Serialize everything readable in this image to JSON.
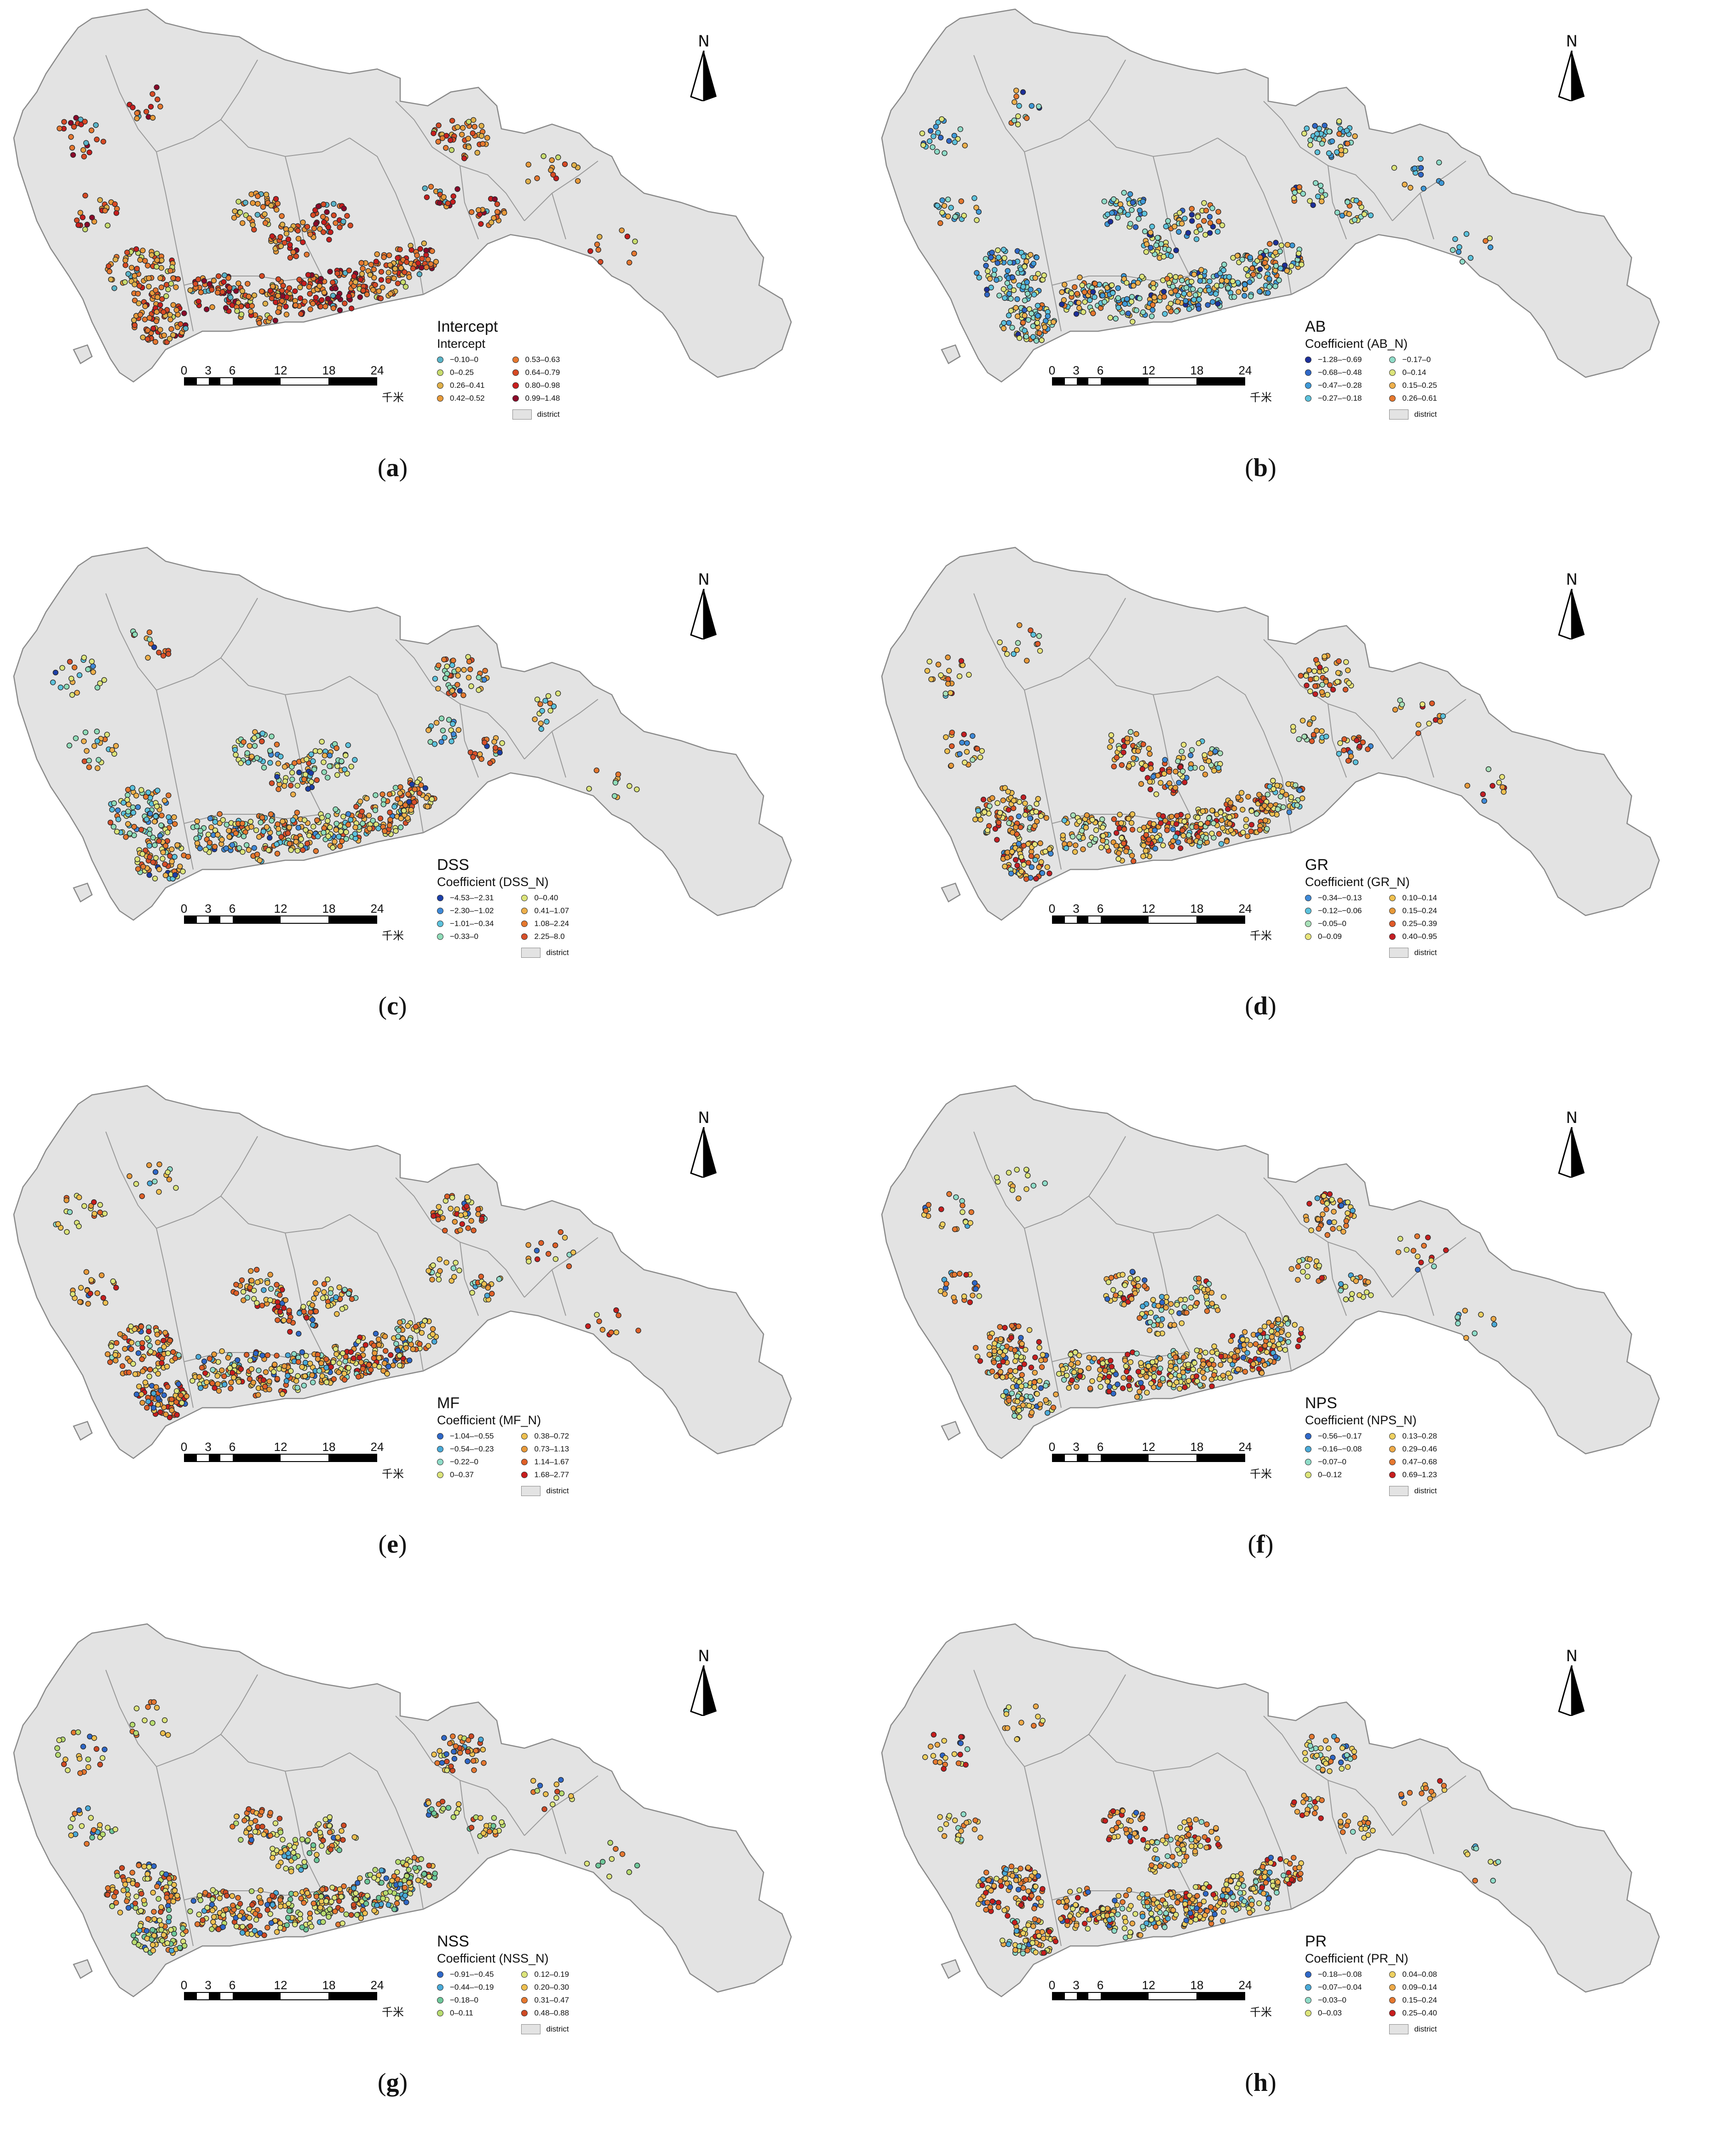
{
  "common": {
    "north_label": "N",
    "scale_ticks": [
      "0",
      "3",
      "6",
      "12",
      "18",
      "24"
    ],
    "scale_unit": "千米",
    "district_label": "district",
    "region_fill": "#e3e3e3",
    "region_stroke": "#8a8a8a"
  },
  "panels": [
    {
      "id": "a",
      "caption_letter": "a",
      "legend_title": "Intercept",
      "legend_sub": "Intercept",
      "classes_left": [
        {
          "label": "−0.10–0",
          "color": "#5ab4c8"
        },
        {
          "label": "0–0.25",
          "color": "#c8dc6e"
        },
        {
          "label": "0.26–0.41",
          "color": "#e0b04a"
        },
        {
          "label": "0.42–0.52",
          "color": "#e89a3a"
        }
      ],
      "classes_right": [
        {
          "label": "0.53–0.63",
          "color": "#e67830"
        },
        {
          "label": "0.64–0.79",
          "color": "#d84a24"
        },
        {
          "label": "0.80–0.98",
          "color": "#c81e1e"
        },
        {
          "label": "0.99–1.48",
          "color": "#8c0a2a"
        }
      ]
    },
    {
      "id": "b",
      "caption_letter": "b",
      "legend_title": "AB",
      "legend_sub": "Coefficient (AB_N)",
      "classes_left": [
        {
          "label": "−1.28–−0.69",
          "color": "#1c2f9a"
        },
        {
          "label": "−0.68–−0.48",
          "color": "#2f68c8"
        },
        {
          "label": "−0.47–−0.28",
          "color": "#3f9ad8"
        },
        {
          "label": "−0.27–−0.18",
          "color": "#5cc2dc"
        }
      ],
      "classes_right": [
        {
          "label": "−0.17–0",
          "color": "#8fdcc8"
        },
        {
          "label": "0–0.14",
          "color": "#dce47a"
        },
        {
          "label": "0.15–0.25",
          "color": "#eeb04c"
        },
        {
          "label": "0.26–0.61",
          "color": "#e6782e"
        }
      ]
    },
    {
      "id": "c",
      "caption_letter": "c",
      "legend_title": "DSS",
      "legend_sub": "Coefficient (DSS_N)",
      "classes_left": [
        {
          "label": "−4.53–−2.31",
          "color": "#1c3fa8"
        },
        {
          "label": "−2.30–−1.02",
          "color": "#3f8ad8"
        },
        {
          "label": "−1.01–−0.34",
          "color": "#5cc2dc"
        },
        {
          "label": "−0.33–0",
          "color": "#8fdcb8"
        }
      ],
      "classes_right": [
        {
          "label": "0–0.40",
          "color": "#dce47a"
        },
        {
          "label": "0.41–1.07",
          "color": "#eeb04c"
        },
        {
          "label": "1.08–2.24",
          "color": "#e6782e"
        },
        {
          "label": "2.25–8.0",
          "color": "#d8502a"
        }
      ]
    },
    {
      "id": "d",
      "caption_letter": "d",
      "legend_title": "GR",
      "legend_sub": "Coefficient (GR_N)",
      "classes_left": [
        {
          "label": "−0.34–−0.13",
          "color": "#3f8ad8"
        },
        {
          "label": "−0.12–−0.06",
          "color": "#5cc2dc"
        },
        {
          "label": "−0.05–0",
          "color": "#a8e0b8"
        },
        {
          "label": "0–0.09",
          "color": "#e8e47a"
        }
      ],
      "classes_right": [
        {
          "label": "0.10–0.14",
          "color": "#eec050"
        },
        {
          "label": "0.15–0.24",
          "color": "#e89a3a"
        },
        {
          "label": "0.25–0.39",
          "color": "#e05a28"
        },
        {
          "label": "0.40–0.95",
          "color": "#c41e24"
        }
      ]
    },
    {
      "id": "e",
      "caption_letter": "e",
      "legend_title": "MF",
      "legend_sub": "Coefficient (MF_N)",
      "classes_left": [
        {
          "label": "−1.04–−0.55",
          "color": "#2f68c8"
        },
        {
          "label": "−0.54–−0.23",
          "color": "#4aaad8"
        },
        {
          "label": "−0.22–0",
          "color": "#8fdcc8"
        },
        {
          "label": "0–0.37",
          "color": "#dce47a"
        }
      ],
      "classes_right": [
        {
          "label": "0.38–0.72",
          "color": "#eec050"
        },
        {
          "label": "0.73–1.13",
          "color": "#e89a3a"
        },
        {
          "label": "1.14–1.67",
          "color": "#e06028"
        },
        {
          "label": "1.68–2.77",
          "color": "#c81e1e"
        }
      ]
    },
    {
      "id": "f",
      "caption_letter": "f",
      "legend_title": "NPS",
      "legend_sub": "Coefficient (NPS_N)",
      "classes_left": [
        {
          "label": "−0.56–−0.17",
          "color": "#2f68c8"
        },
        {
          "label": "−0.16–−0.08",
          "color": "#4aaad8"
        },
        {
          "label": "−0.07–0",
          "color": "#8fdcc8"
        },
        {
          "label": "0–0.12",
          "color": "#dce47a"
        }
      ],
      "classes_right": [
        {
          "label": "0.13–0.28",
          "color": "#eed060"
        },
        {
          "label": "0.29–0.46",
          "color": "#eeaa48"
        },
        {
          "label": "0.47–0.68",
          "color": "#e67830"
        },
        {
          "label": "0.69–1.23",
          "color": "#c81e1e"
        }
      ]
    },
    {
      "id": "g",
      "caption_letter": "g",
      "legend_title": "NSS",
      "legend_sub": "Coefficient (NSS_N)",
      "classes_left": [
        {
          "label": "−0.91–−0.45",
          "color": "#2f68c8"
        },
        {
          "label": "−0.44–−0.19",
          "color": "#4aaad8"
        },
        {
          "label": "−0.18–0",
          "color": "#6ec89a"
        },
        {
          "label": "0–0.11",
          "color": "#b8dc70"
        }
      ],
      "classes_right": [
        {
          "label": "0.12–0.19",
          "color": "#dce47a"
        },
        {
          "label": "0.20–0.30",
          "color": "#eec050"
        },
        {
          "label": "0.31–0.47",
          "color": "#e67830"
        },
        {
          "label": "0.48–0.88",
          "color": "#d04a24"
        }
      ]
    },
    {
      "id": "h",
      "caption_letter": "h",
      "legend_title": "PR",
      "legend_sub": "Coefficient (PR_N)",
      "classes_left": [
        {
          "label": "−0.18–−0.08",
          "color": "#2f68c8"
        },
        {
          "label": "−0.07–−0.04",
          "color": "#4aaad8"
        },
        {
          "label": "−0.03–0",
          "color": "#8fdcc8"
        },
        {
          "label": "0–0.03",
          "color": "#dce47a"
        }
      ],
      "classes_right": [
        {
          "label": "0.04–0.08",
          "color": "#eed060"
        },
        {
          "label": "0.09–0.14",
          "color": "#eeaa48"
        },
        {
          "label": "0.15–0.24",
          "color": "#e67830"
        },
        {
          "label": "0.25–0.40",
          "color": "#c81e1e"
        }
      ]
    }
  ]
}
